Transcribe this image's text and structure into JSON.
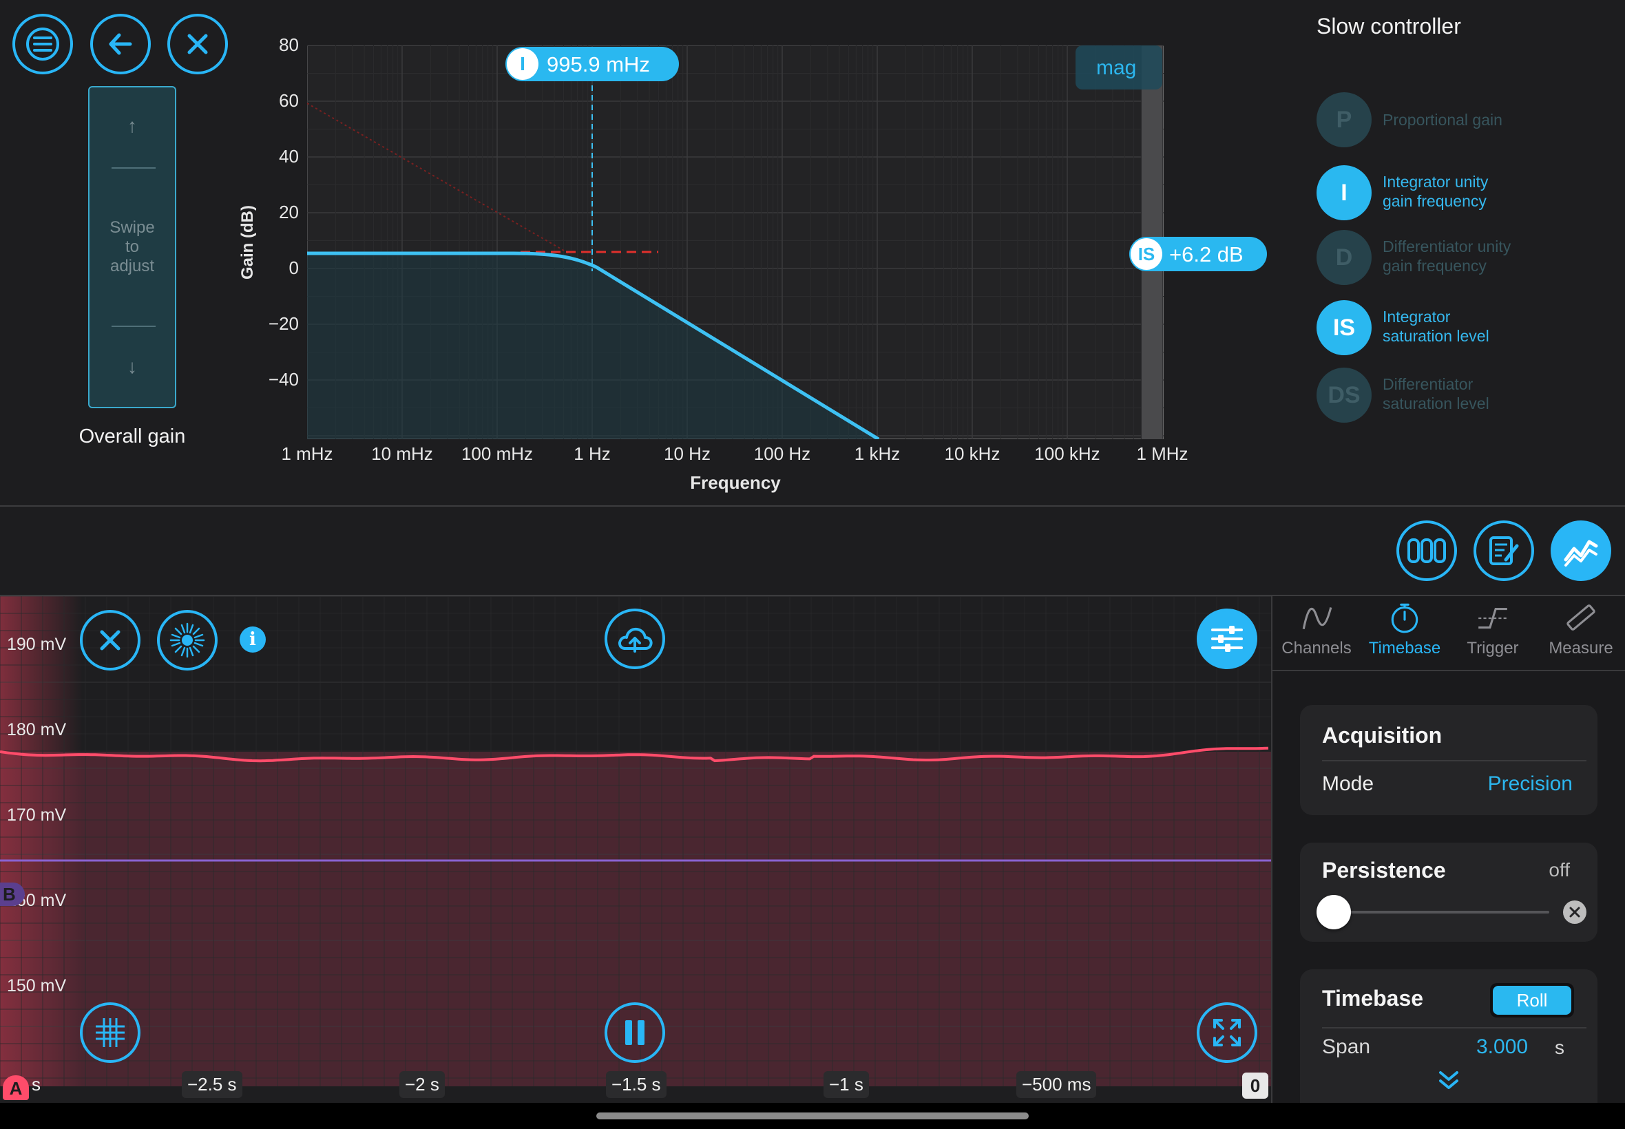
{
  "top_buttons": {
    "menu_icon": "menu-icon",
    "back_icon": "back-arrow-icon",
    "close_icon": "close-icon"
  },
  "swipe": {
    "up": "↑",
    "text_line1": "Swipe",
    "text_line2": "to",
    "text_line3": "adjust",
    "down": "↓",
    "caption": "Overall gain"
  },
  "bode": {
    "ylabel": "Gain (dB)",
    "xlabel": "Frequency",
    "yticks": [
      "80",
      "60",
      "40",
      "20",
      "0",
      "−20",
      "−40"
    ],
    "xticks": [
      "1 mHz",
      "10 mHz",
      "100 mHz",
      "1 Hz",
      "10 Hz",
      "100 Hz",
      "1 kHz",
      "10 kHz",
      "100 kHz",
      "1 MHz"
    ],
    "mag_label": "mag",
    "freq_marker": {
      "badge": "I",
      "value": "995.9 mHz"
    },
    "gain_marker": {
      "badge": "IS",
      "value": "+6.2 dB"
    },
    "accent": "#29b6f6"
  },
  "slow_controller": {
    "title": "Slow controller",
    "items": [
      {
        "badge": "P",
        "line1": "Proportional gain",
        "line2": "",
        "state": "off"
      },
      {
        "badge": "I",
        "line1": "Integrator unity",
        "line2": "gain frequency",
        "state": "on"
      },
      {
        "badge": "D",
        "line1": "Differentiator unity",
        "line2": "gain frequency",
        "state": "off"
      },
      {
        "badge": "IS",
        "line1": "Integrator",
        "line2": "saturation level",
        "state": "on"
      },
      {
        "badge": "DS",
        "line1": "Differentiator",
        "line2": "saturation level",
        "state": "off"
      }
    ]
  },
  "toolbar_icons": [
    "digits-icon",
    "notes-icon",
    "chart-icon"
  ],
  "scope": {
    "ylabels": [
      "190 mV",
      "180 mV",
      "170 mV",
      "160 mV",
      "150 mV"
    ],
    "tlabels": [
      "s",
      "−2.5 s",
      "−2 s",
      "−1.5 s",
      "−1 s",
      "−500 ms"
    ],
    "zero_marker": "0",
    "channel_a": "A",
    "channel_b": "B",
    "colors": {
      "channel_a": "#ff4c6a",
      "channel_b": "#8a63d2"
    }
  },
  "panel": {
    "tabs": [
      {
        "label": "Channels",
        "icon": "sine-wave-icon",
        "active": false
      },
      {
        "label": "Timebase",
        "icon": "stopwatch-icon",
        "active": true
      },
      {
        "label": "Trigger",
        "icon": "trigger-edge-icon",
        "active": false
      },
      {
        "label": "Measure",
        "icon": "ruler-icon",
        "active": false
      }
    ],
    "acquisition": {
      "title": "Acquisition",
      "mode_label": "Mode",
      "mode_value": "Precision"
    },
    "persistence": {
      "title": "Persistence",
      "value": "off"
    },
    "timebase": {
      "title": "Timebase",
      "roll_label": "Roll",
      "span_label": "Span",
      "span_value": "3.000",
      "span_unit": "s"
    }
  }
}
